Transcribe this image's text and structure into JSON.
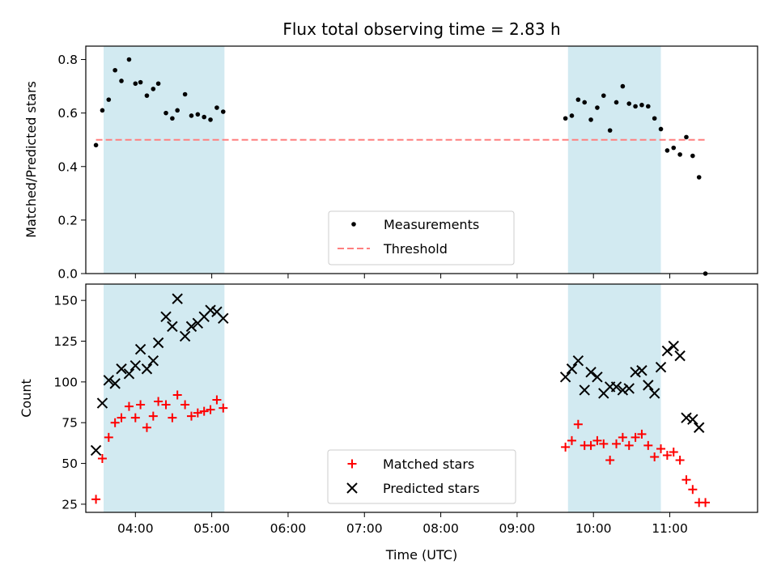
{
  "chart_data": {
    "type": "scatter",
    "title": "Flux total observing time = 2.83 h",
    "xlabel": "Time (UTC)",
    "x_ticks": [
      "04:00",
      "05:00",
      "06:00",
      "07:00",
      "08:00",
      "09:00",
      "10:00",
      "11:00"
    ],
    "x_range": [
      "03:21",
      "12:09"
    ],
    "shaded_intervals": [
      {
        "start": "03:35",
        "end": "05:10"
      },
      {
        "start": "09:40",
        "end": "10:53"
      }
    ],
    "shade_color": "#add8e6",
    "panels": [
      {
        "ylabel": "Matched/Predicted stars",
        "ylim": [
          0,
          0.85
        ],
        "yticks": [
          "0.0",
          "0.2",
          "0.4",
          "0.6",
          "0.8"
        ],
        "legend_position": "lower center",
        "series": [
          {
            "name": "Measurements",
            "kind": "points",
            "color": "#000000",
            "points": [
              [
                "03:29",
                0.48
              ],
              [
                "03:34",
                0.61
              ],
              [
                "03:39",
                0.65
              ],
              [
                "03:44",
                0.76
              ],
              [
                "03:49",
                0.72
              ],
              [
                "03:55",
                0.8
              ],
              [
                "04:00",
                0.71
              ],
              [
                "04:04",
                0.715
              ],
              [
                "04:09",
                0.665
              ],
              [
                "04:14",
                0.69
              ],
              [
                "04:18",
                0.71
              ],
              [
                "04:24",
                0.6
              ],
              [
                "04:29",
                0.58
              ],
              [
                "04:33",
                0.61
              ],
              [
                "04:39",
                0.67
              ],
              [
                "04:44",
                0.59
              ],
              [
                "04:49",
                0.595
              ],
              [
                "04:54",
                0.585
              ],
              [
                "04:59",
                0.575
              ],
              [
                "05:04",
                0.62
              ],
              [
                "05:09",
                0.605
              ],
              [
                "09:38",
                0.58
              ],
              [
                "09:43",
                0.59
              ],
              [
                "09:48",
                0.65
              ],
              [
                "09:53",
                0.64
              ],
              [
                "09:58",
                0.575
              ],
              [
                "10:03",
                0.62
              ],
              [
                "10:08",
                0.665
              ],
              [
                "10:13",
                0.535
              ],
              [
                "10:18",
                0.64
              ],
              [
                "10:23",
                0.7
              ],
              [
                "10:28",
                0.635
              ],
              [
                "10:33",
                0.625
              ],
              [
                "10:38",
                0.63
              ],
              [
                "10:43",
                0.625
              ],
              [
                "10:48",
                0.58
              ],
              [
                "10:53",
                0.54
              ],
              [
                "10:58",
                0.46
              ],
              [
                "11:03",
                0.47
              ],
              [
                "11:08",
                0.445
              ],
              [
                "11:13",
                0.51
              ],
              [
                "11:18",
                0.44
              ],
              [
                "11:23",
                0.36
              ],
              [
                "11:28",
                0.0
              ]
            ]
          },
          {
            "name": "Threshold",
            "kind": "hline",
            "color": "#ff7f7f",
            "y": 0.5,
            "x_start": "03:29",
            "x_end": "11:28"
          }
        ]
      },
      {
        "ylabel": "Count",
        "ylim": [
          20,
          160
        ],
        "yticks": [
          "25",
          "50",
          "75",
          "100",
          "125",
          "150"
        ],
        "legend_position": "lower center",
        "series": [
          {
            "name": "Matched stars",
            "kind": "plus",
            "color": "#ff0000",
            "points": [
              [
                "03:29",
                28
              ],
              [
                "03:34",
                53
              ],
              [
                "03:39",
                66
              ],
              [
                "03:44",
                75
              ],
              [
                "03:49",
                78
              ],
              [
                "03:55",
                85
              ],
              [
                "04:00",
                78
              ],
              [
                "04:04",
                86
              ],
              [
                "04:09",
                72
              ],
              [
                "04:14",
                79
              ],
              [
                "04:18",
                88
              ],
              [
                "04:24",
                86
              ],
              [
                "04:29",
                78
              ],
              [
                "04:33",
                92
              ],
              [
                "04:39",
                86
              ],
              [
                "04:44",
                79
              ],
              [
                "04:49",
                81
              ],
              [
                "04:54",
                82
              ],
              [
                "04:59",
                83
              ],
              [
                "05:04",
                89
              ],
              [
                "05:09",
                84
              ],
              [
                "09:38",
                60
              ],
              [
                "09:43",
                64
              ],
              [
                "09:48",
                74
              ],
              [
                "09:53",
                61
              ],
              [
                "09:58",
                61
              ],
              [
                "10:03",
                64
              ],
              [
                "10:08",
                62
              ],
              [
                "10:13",
                52
              ],
              [
                "10:18",
                62
              ],
              [
                "10:23",
                66
              ],
              [
                "10:28",
                61
              ],
              [
                "10:33",
                66
              ],
              [
                "10:38",
                68
              ],
              [
                "10:43",
                61
              ],
              [
                "10:48",
                54
              ],
              [
                "10:53",
                59
              ],
              [
                "10:58",
                55
              ],
              [
                "11:03",
                57
              ],
              [
                "11:08",
                52
              ],
              [
                "11:13",
                40
              ],
              [
                "11:18",
                34
              ],
              [
                "11:23",
                26
              ],
              [
                "11:28",
                26
              ]
            ]
          },
          {
            "name": "Predicted stars",
            "kind": "x",
            "color": "#000000",
            "points": [
              [
                "03:29",
                58
              ],
              [
                "03:34",
                87
              ],
              [
                "03:39",
                101
              ],
              [
                "03:44",
                99
              ],
              [
                "03:49",
                108
              ],
              [
                "03:55",
                105
              ],
              [
                "04:00",
                110
              ],
              [
                "04:04",
                120
              ],
              [
                "04:09",
                108
              ],
              [
                "04:14",
                113
              ],
              [
                "04:18",
                124
              ],
              [
                "04:24",
                140
              ],
              [
                "04:29",
                134
              ],
              [
                "04:33",
                151
              ],
              [
                "04:39",
                128
              ],
              [
                "04:44",
                134
              ],
              [
                "04:49",
                136
              ],
              [
                "04:54",
                140
              ],
              [
                "04:59",
                144
              ],
              [
                "05:04",
                143
              ],
              [
                "05:09",
                139
              ],
              [
                "09:38",
                103
              ],
              [
                "09:43",
                108
              ],
              [
                "09:48",
                113
              ],
              [
                "09:53",
                95
              ],
              [
                "09:58",
                106
              ],
              [
                "10:03",
                103
              ],
              [
                "10:08",
                93
              ],
              [
                "10:13",
                97
              ],
              [
                "10:18",
                97
              ],
              [
                "10:23",
                95
              ],
              [
                "10:28",
                96
              ],
              [
                "10:33",
                106
              ],
              [
                "10:38",
                107
              ],
              [
                "10:43",
                98
              ],
              [
                "10:48",
                93
              ],
              [
                "10:53",
                109
              ],
              [
                "10:58",
                119
              ],
              [
                "11:03",
                122
              ],
              [
                "11:08",
                116
              ],
              [
                "11:13",
                78
              ],
              [
                "11:18",
                77
              ],
              [
                "11:23",
                72
              ]
            ]
          }
        ]
      }
    ]
  }
}
